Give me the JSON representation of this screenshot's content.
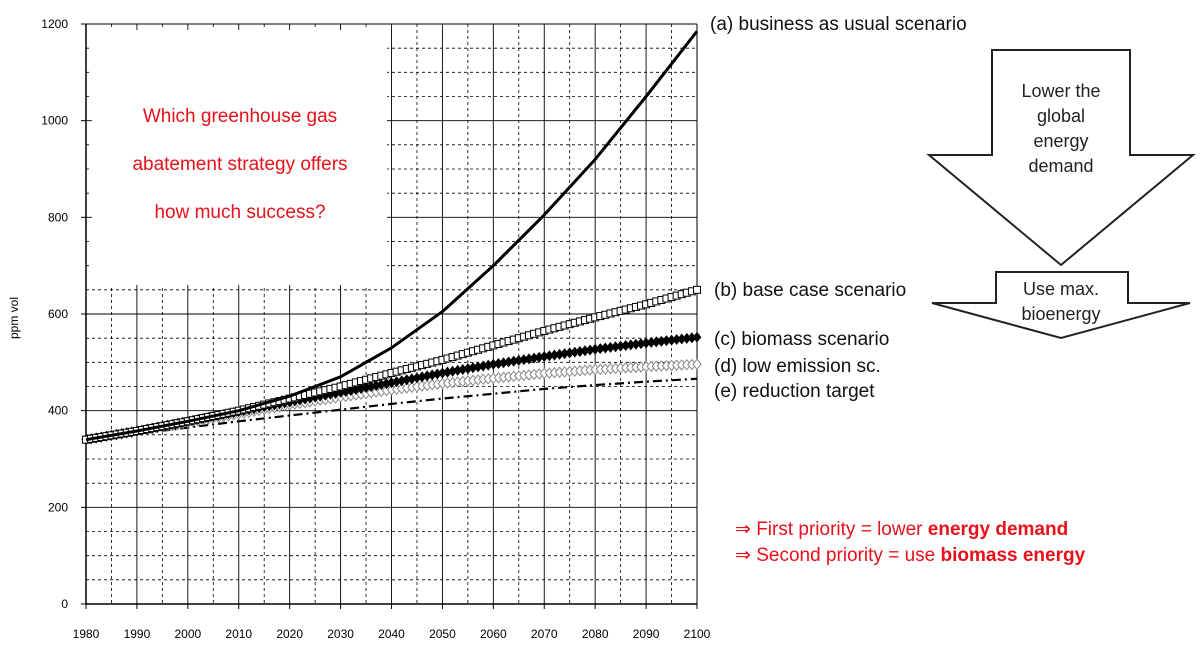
{
  "chart_data": {
    "type": "line",
    "ylabel": "ppm vol",
    "xlim": [
      1980,
      2100
    ],
    "ylim": [
      0,
      1200
    ],
    "x_ticks": [
      1980,
      1990,
      2000,
      2010,
      2020,
      2030,
      2040,
      2050,
      2060,
      2070,
      2080,
      2090,
      2100
    ],
    "y_ticks": [
      0,
      200,
      400,
      600,
      800,
      1000,
      1200
    ],
    "grid": true,
    "x": [
      1980,
      1990,
      2000,
      2010,
      2020,
      2030,
      2040,
      2050,
      2060,
      2070,
      2080,
      2090,
      2100
    ],
    "series": [
      {
        "name": "(a) business as usual scenario",
        "marker": "none",
        "style": "solid-thick",
        "values": [
          340,
          358,
          378,
          400,
          430,
          470,
          530,
          605,
          700,
          805,
          920,
          1050,
          1185
        ]
      },
      {
        "name": "(b) base case scenario",
        "marker": "open-square",
        "style": "solid",
        "values": [
          340,
          358,
          378,
          400,
          425,
          450,
          478,
          505,
          535,
          565,
          593,
          620,
          650
        ]
      },
      {
        "name": "(c) biomass scenario",
        "marker": "filled-diamond",
        "style": "solid",
        "values": [
          340,
          358,
          378,
          398,
          418,
          438,
          458,
          478,
          496,
          512,
          527,
          540,
          552
        ]
      },
      {
        "name": "(d) low emission sc.",
        "marker": "open-diamond",
        "style": "solid",
        "values": [
          340,
          357,
          375,
          393,
          412,
          428,
          443,
          456,
          467,
          477,
          485,
          491,
          496
        ]
      },
      {
        "name": "(e) reduction target",
        "marker": "none",
        "style": "dash-dot",
        "values": [
          340,
          352,
          365,
          378,
          390,
          402,
          414,
          425,
          435,
          445,
          453,
          460,
          466
        ]
      }
    ]
  },
  "question_lines": [
    "Which greenhouse gas",
    "abatement strategy offers",
    "how much success?"
  ],
  "arrow_top_lines": [
    "Lower the",
    "global",
    "energy",
    "demand"
  ],
  "arrow_bottom_lines": [
    "Use max.",
    "bioenergy"
  ],
  "priorities": [
    {
      "arrow": "⇒",
      "prefix": " First priority = lower ",
      "bold": "energy demand"
    },
    {
      "arrow": "⇒",
      "prefix": " Second priority = use ",
      "bold": "biomass energy"
    }
  ],
  "colors": {
    "accent_red": "#e8101a",
    "line": "#000000",
    "grid": "#000000",
    "marker_open": "#ffffff",
    "diamond_open_stroke": "#888888"
  }
}
